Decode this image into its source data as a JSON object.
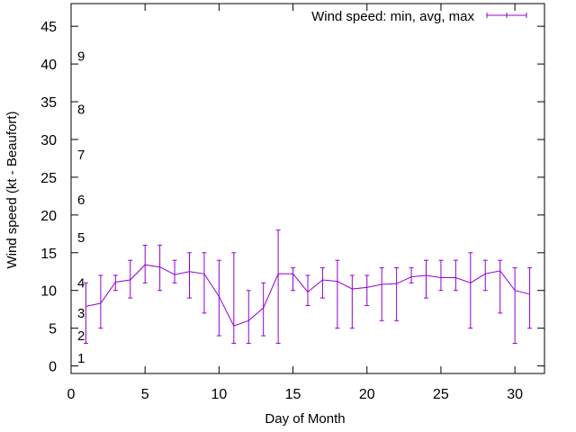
{
  "chart_data": {
    "type": "line",
    "series_style": "errorbars",
    "color": "#9400d3",
    "xlabel": "Day of Month",
    "ylabel": "Wind speed (kt - Beaufort)",
    "xlim": [
      0,
      32
    ],
    "ylim": [
      -1,
      48
    ],
    "xticks": [
      0,
      5,
      10,
      15,
      20,
      25,
      30
    ],
    "yticks": [
      0,
      5,
      10,
      15,
      20,
      25,
      30,
      35,
      40,
      45
    ],
    "legend": {
      "label": "Wind speed: min, avg, max",
      "position": "top-right"
    },
    "beaufort_labels": [
      {
        "label": "1",
        "value": 1
      },
      {
        "label": "2",
        "value": 4
      },
      {
        "label": "3",
        "value": 7
      },
      {
        "label": "4",
        "value": 11
      },
      {
        "label": "5",
        "value": 17
      },
      {
        "label": "6",
        "value": 22
      },
      {
        "label": "7",
        "value": 28
      },
      {
        "label": "8",
        "value": 34
      },
      {
        "label": "9",
        "value": 41
      }
    ],
    "points": [
      {
        "day": 1,
        "min": 3,
        "avg": 7.9,
        "max": 11
      },
      {
        "day": 2,
        "min": 5,
        "avg": 8.3,
        "max": 12
      },
      {
        "day": 3,
        "min": 10,
        "avg": 11.1,
        "max": 12
      },
      {
        "day": 4,
        "min": 9,
        "avg": 11.4,
        "max": 14
      },
      {
        "day": 5,
        "min": 11,
        "avg": 13.4,
        "max": 16
      },
      {
        "day": 6,
        "min": 10,
        "avg": 13.1,
        "max": 16
      },
      {
        "day": 7,
        "min": 11,
        "avg": 12.1,
        "max": 14
      },
      {
        "day": 8,
        "min": 9,
        "avg": 12.5,
        "max": 15
      },
      {
        "day": 9,
        "min": 7,
        "avg": 12.2,
        "max": 15
      },
      {
        "day": 10,
        "min": 4,
        "avg": 9.2,
        "max": 14
      },
      {
        "day": 11,
        "min": 3,
        "avg": 5.3,
        "max": 15
      },
      {
        "day": 12,
        "min": 3,
        "avg": 6.0,
        "max": 10
      },
      {
        "day": 13,
        "min": 4,
        "avg": 7.7,
        "max": 11
      },
      {
        "day": 14,
        "min": 3,
        "avg": 12.2,
        "max": 18
      },
      {
        "day": 15,
        "min": 10,
        "avg": 12.2,
        "max": 13
      },
      {
        "day": 16,
        "min": 8,
        "avg": 9.8,
        "max": 12
      },
      {
        "day": 17,
        "min": 9,
        "avg": 11.4,
        "max": 13
      },
      {
        "day": 18,
        "min": 5,
        "avg": 11.2,
        "max": 14
      },
      {
        "day": 19,
        "min": 5,
        "avg": 10.2,
        "max": 12
      },
      {
        "day": 20,
        "min": 8,
        "avg": 10.4,
        "max": 12
      },
      {
        "day": 21,
        "min": 6,
        "avg": 10.8,
        "max": 13
      },
      {
        "day": 22,
        "min": 6,
        "avg": 10.9,
        "max": 13
      },
      {
        "day": 23,
        "min": 11,
        "avg": 11.8,
        "max": 13
      },
      {
        "day": 24,
        "min": 9,
        "avg": 12.0,
        "max": 14
      },
      {
        "day": 25,
        "min": 10,
        "avg": 11.7,
        "max": 14
      },
      {
        "day": 26,
        "min": 10,
        "avg": 11.7,
        "max": 14
      },
      {
        "day": 27,
        "min": 5,
        "avg": 11.0,
        "max": 15
      },
      {
        "day": 28,
        "min": 10,
        "avg": 12.2,
        "max": 14
      },
      {
        "day": 29,
        "min": 7,
        "avg": 12.6,
        "max": 14
      },
      {
        "day": 30,
        "min": 3,
        "avg": 10.0,
        "max": 13
      },
      {
        "day": 31,
        "min": 5,
        "avg": 9.5,
        "max": 13
      }
    ]
  }
}
